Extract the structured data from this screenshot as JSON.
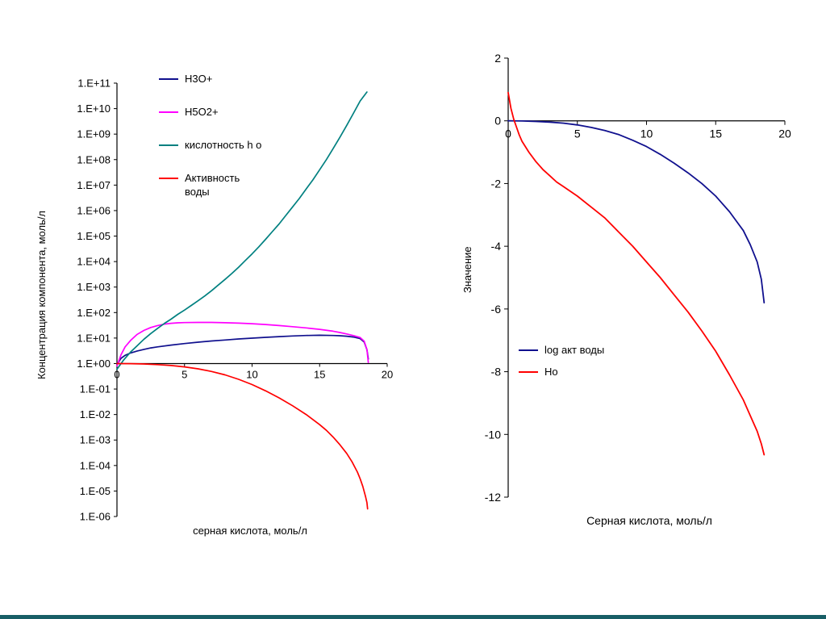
{
  "slide": {
    "background_color": "#FFFFFF",
    "footer_bar_color": "#175E66"
  },
  "chart_data": [
    {
      "id": "concentration-chart",
      "type": "line",
      "xlabel": "серная кислота, моль/л",
      "ylabel": "Концентрация компонента, моль/л",
      "y_scale": "log10",
      "ylim_exp": [
        -6,
        11
      ],
      "xlim": [
        0,
        20
      ],
      "x_axis_at_exp": 0,
      "grid": false,
      "legend_position": "upper-left-inside",
      "x_ticks": [
        0,
        5,
        10,
        15,
        20
      ],
      "x_tick_labels": [
        "0",
        "5",
        "10",
        "15",
        "20"
      ],
      "y_ticks_exp": [
        11,
        10,
        9,
        8,
        7,
        6,
        5,
        4,
        3,
        2,
        1,
        0,
        -1,
        -2,
        -3,
        -4,
        -5,
        -6
      ],
      "y_tick_labels": [
        "1.E+11",
        "1.E+10",
        "1.E+09",
        "1.E+08",
        "1.E+07",
        "1.E+06",
        "1.E+05",
        "1.E+04",
        "1.E+03",
        "1.E+02",
        "1.E+01",
        "1.E+00",
        "1.E-01",
        "1.E-02",
        "1.E-03",
        "1.E-04",
        "1.E-05",
        "1.E-06"
      ],
      "series": [
        {
          "name": "H3O+",
          "color": "#10108E",
          "points": [
            [
              0,
              0.9
            ],
            [
              0.3,
              1.6
            ],
            [
              0.6,
              2.1
            ],
            [
              1,
              2.6
            ],
            [
              1.5,
              3.1
            ],
            [
              2,
              3.6
            ],
            [
              2.5,
              4.1
            ],
            [
              3,
              4.5
            ],
            [
              4,
              5.3
            ],
            [
              5,
              6.1
            ],
            [
              6,
              6.9
            ],
            [
              7,
              7.7
            ],
            [
              8,
              8.4
            ],
            [
              9,
              9.2
            ],
            [
              10,
              9.9
            ],
            [
              11,
              10.7
            ],
            [
              12,
              11.4
            ],
            [
              13,
              12.1
            ],
            [
              14,
              12.6
            ],
            [
              15,
              12.9
            ],
            [
              16,
              12.6
            ],
            [
              16.5,
              12.3
            ],
            [
              17,
              11.8
            ],
            [
              17.5,
              11.0
            ],
            [
              18,
              9.5
            ],
            [
              18.3,
              7.0
            ],
            [
              18.5,
              3.5
            ],
            [
              18.6,
              1.5
            ]
          ]
        },
        {
          "name": "H5O2+",
          "color": "#FF00FF",
          "points": [
            [
              0,
              0.8
            ],
            [
              0.3,
              2.2
            ],
            [
              0.6,
              4.5
            ],
            [
              1,
              8
            ],
            [
              1.5,
              14
            ],
            [
              2,
              20
            ],
            [
              2.5,
              26
            ],
            [
              3,
              31
            ],
            [
              3.5,
              35
            ],
            [
              4,
              38
            ],
            [
              4.5,
              39.5
            ],
            [
              5,
              40.5
            ],
            [
              6,
              41
            ],
            [
              7,
              41
            ],
            [
              8,
              40
            ],
            [
              9,
              38.5
            ],
            [
              10,
              36.5
            ],
            [
              11,
              34
            ],
            [
              12,
              31
            ],
            [
              13,
              28
            ],
            [
              14,
              25
            ],
            [
              15,
              22
            ],
            [
              16,
              18.5
            ],
            [
              16.5,
              16.5
            ],
            [
              17,
              14.5
            ],
            [
              17.5,
              12.5
            ],
            [
              18,
              10.5
            ],
            [
              18.3,
              7.5
            ],
            [
              18.5,
              3.5
            ],
            [
              18.6,
              1.1
            ]
          ]
        },
        {
          "name": "кислотность h o",
          "color": "#008080",
          "points": [
            [
              0,
              0.6
            ],
            [
              0.5,
              1.4
            ],
            [
              1,
              2.8
            ],
            [
              1.5,
              5
            ],
            [
              2,
              9
            ],
            [
              2.5,
              15
            ],
            [
              3,
              24
            ],
            [
              3.5,
              37
            ],
            [
              4,
              55
            ],
            [
              4.5,
              85
            ],
            [
              5,
              125
            ],
            [
              5.5,
              190
            ],
            [
              6,
              290
            ],
            [
              6.5,
              450
            ],
            [
              7,
              720
            ],
            [
              7.5,
              1200
            ],
            [
              8,
              2000
            ],
            [
              8.5,
              3400
            ],
            [
              9,
              6000
            ],
            [
              9.5,
              11000
            ],
            [
              10,
              20000
            ],
            [
              10.5,
              38000
            ],
            [
              11,
              75000
            ],
            [
              11.5,
              150000
            ],
            [
              12,
              300000
            ],
            [
              12.5,
              650000
            ],
            [
              13,
              1400000
            ],
            [
              13.5,
              3000000
            ],
            [
              14,
              7000000
            ],
            [
              14.5,
              16000000
            ],
            [
              15,
              40000000
            ],
            [
              15.5,
              100000000
            ],
            [
              16,
              270000000
            ],
            [
              16.5,
              750000000
            ],
            [
              17,
              2200000000
            ],
            [
              17.5,
              6500000000
            ],
            [
              18,
              20000000000
            ],
            [
              18.5,
              45000000000
            ]
          ]
        },
        {
          "name": "Активность воды",
          "legend_label": "Активность\nводы",
          "color": "#FF0000",
          "points": [
            [
              0,
              1
            ],
            [
              1,
              0.99
            ],
            [
              2,
              0.96
            ],
            [
              3,
              0.91
            ],
            [
              4,
              0.84
            ],
            [
              5,
              0.74
            ],
            [
              6,
              0.62
            ],
            [
              7,
              0.49
            ],
            [
              8,
              0.36
            ],
            [
              9,
              0.24
            ],
            [
              10,
              0.15
            ],
            [
              11,
              0.085
            ],
            [
              12,
              0.045
            ],
            [
              13,
              0.022
            ],
            [
              14,
              0.01
            ],
            [
              15,
              0.004
            ],
            [
              15.5,
              0.0024
            ],
            [
              16,
              0.0013
            ],
            [
              16.5,
              0.00065
            ],
            [
              17,
              0.0003
            ],
            [
              17.4,
              0.00014
            ],
            [
              17.8,
              5.5e-05
            ],
            [
              18,
              3e-05
            ],
            [
              18.2,
              1.5e-05
            ],
            [
              18.4,
              6e-06
            ],
            [
              18.5,
              3.5e-06
            ],
            [
              18.55,
              2e-06
            ]
          ]
        }
      ]
    },
    {
      "id": "activity-chart",
      "type": "line",
      "xlabel": "Серная кислота, моль/л",
      "ylabel": "Значение",
      "y_scale": "linear",
      "ylim": [
        -12,
        2
      ],
      "xlim": [
        0,
        20
      ],
      "x_axis_at": 0,
      "grid": false,
      "legend_position": "lower-left-inside",
      "x_ticks": [
        0,
        5,
        10,
        15,
        20
      ],
      "x_tick_labels": [
        "0",
        "5",
        "10",
        "15",
        "20"
      ],
      "y_ticks": [
        2,
        0,
        -2,
        -4,
        -6,
        -8,
        -10,
        -12
      ],
      "y_tick_labels": [
        "2",
        "0",
        "-2",
        "-4",
        "-6",
        "-8",
        "-10",
        "-12"
      ],
      "series": [
        {
          "name": "log акт воды",
          "color": "#10108E",
          "points": [
            [
              0,
              0
            ],
            [
              1,
              -0.005
            ],
            [
              2,
              -0.02
            ],
            [
              3,
              -0.04
            ],
            [
              4,
              -0.075
            ],
            [
              5,
              -0.13
            ],
            [
              6,
              -0.21
            ],
            [
              7,
              -0.31
            ],
            [
              8,
              -0.44
            ],
            [
              9,
              -0.62
            ],
            [
              10,
              -0.82
            ],
            [
              11,
              -1.07
            ],
            [
              12,
              -1.35
            ],
            [
              13,
              -1.66
            ],
            [
              14,
              -2.0
            ],
            [
              15,
              -2.4
            ],
            [
              16,
              -2.9
            ],
            [
              16.5,
              -3.2
            ],
            [
              17,
              -3.5
            ],
            [
              17.5,
              -3.95
            ],
            [
              18,
              -4.5
            ],
            [
              18.3,
              -5.05
            ],
            [
              18.5,
              -5.8
            ]
          ]
        },
        {
          "name": "Ho",
          "color": "#FF0000",
          "points": [
            [
              0,
              0.9
            ],
            [
              0.2,
              0.4
            ],
            [
              0.4,
              0.05
            ],
            [
              0.6,
              -0.2
            ],
            [
              0.8,
              -0.45
            ],
            [
              1,
              -0.65
            ],
            [
              1.5,
              -1.0
            ],
            [
              2,
              -1.3
            ],
            [
              2.5,
              -1.55
            ],
            [
              3,
              -1.75
            ],
            [
              3.5,
              -1.95
            ],
            [
              4,
              -2.1
            ],
            [
              4.5,
              -2.25
            ],
            [
              5,
              -2.4
            ],
            [
              6,
              -2.75
            ],
            [
              7,
              -3.1
            ],
            [
              8,
              -3.55
            ],
            [
              9,
              -4.0
            ],
            [
              10,
              -4.5
            ],
            [
              11,
              -5.0
            ],
            [
              12,
              -5.55
            ],
            [
              13,
              -6.1
            ],
            [
              14,
              -6.7
            ],
            [
              15,
              -7.35
            ],
            [
              16,
              -8.1
            ],
            [
              17,
              -8.9
            ],
            [
              17.5,
              -9.4
            ],
            [
              18,
              -9.9
            ],
            [
              18.3,
              -10.3
            ],
            [
              18.5,
              -10.65
            ]
          ]
        }
      ]
    }
  ]
}
